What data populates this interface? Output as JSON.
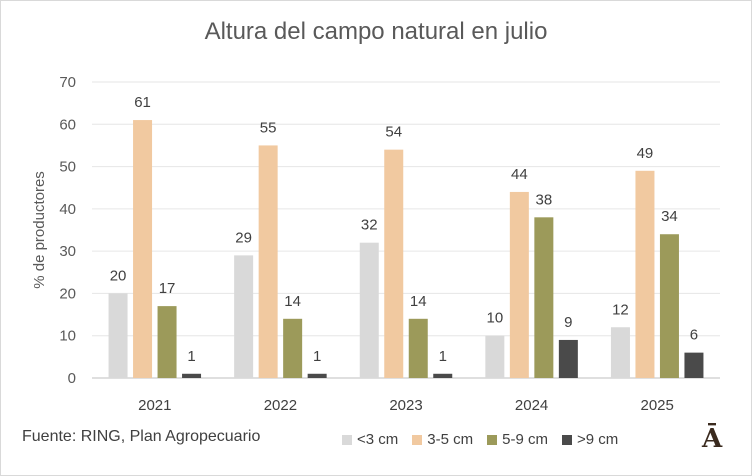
{
  "chart_data": {
    "type": "bar",
    "title": "Altura del campo natural en julio",
    "xlabel": "",
    "ylabel": "% de productores",
    "ylim": [
      0,
      70
    ],
    "yticks": [
      "0",
      "10",
      "20",
      "30",
      "40",
      "50",
      "60",
      "70"
    ],
    "categories": [
      "2021",
      "2022",
      "2023",
      "2024",
      "2025"
    ],
    "series": [
      {
        "name": "<3 cm",
        "color": "#d9d9d9",
        "values": [
          20,
          29,
          32,
          10,
          12
        ]
      },
      {
        "name": "3-5 cm",
        "color": "#f1c9a0",
        "values": [
          61,
          55,
          54,
          44,
          49
        ]
      },
      {
        "name": "5-9 cm",
        "color": "#9c9a5a",
        "values": [
          17,
          14,
          14,
          38,
          34
        ]
      },
      {
        "name": ">9 cm",
        "color": "#4a4a4a",
        "values": [
          1,
          1,
          1,
          9,
          6
        ]
      }
    ],
    "legend": "bottom-right"
  },
  "footer": {
    "source": "Fuente: RING, Plan Agropecuario",
    "logo_text": "Ā"
  }
}
